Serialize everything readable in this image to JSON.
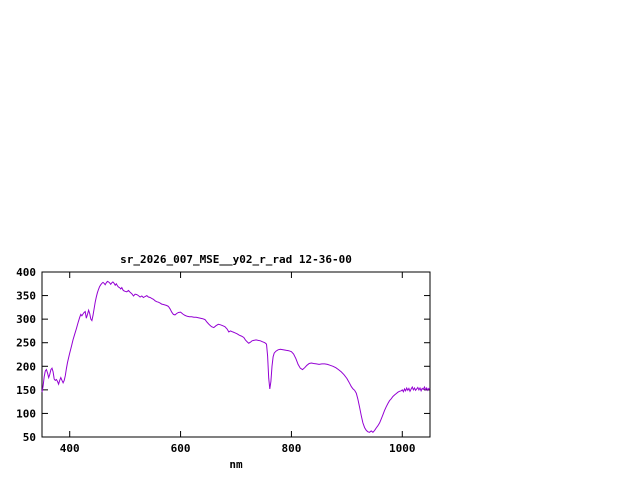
{
  "window": {
    "background": "#ffffff"
  },
  "chart_data": {
    "type": "line",
    "title": "sr_2026_007_MSE__y02_r_rad 12-36-00",
    "xlabel": "nm",
    "ylabel": "",
    "xlim": [
      350,
      1050
    ],
    "ylim": [
      50,
      400
    ],
    "xticks": [
      400,
      600,
      800,
      1000
    ],
    "yticks": [
      50,
      100,
      150,
      200,
      250,
      300,
      350,
      400
    ],
    "grid": false,
    "legend": "none",
    "line_color": "#9400d3",
    "frame_color": "#000000",
    "series": [
      {
        "name": "sr_2026_007_MSE__y02_r_rad",
        "points": [
          [
            350,
            145
          ],
          [
            352,
            158
          ],
          [
            354,
            178
          ],
          [
            356,
            190
          ],
          [
            358,
            193
          ],
          [
            360,
            186
          ],
          [
            362,
            176
          ],
          [
            364,
            183
          ],
          [
            366,
            193
          ],
          [
            368,
            196
          ],
          [
            370,
            188
          ],
          [
            372,
            173
          ],
          [
            374,
            170
          ],
          [
            376,
            172
          ],
          [
            378,
            168
          ],
          [
            380,
            162
          ],
          [
            382,
            170
          ],
          [
            384,
            176
          ],
          [
            386,
            170
          ],
          [
            388,
            165
          ],
          [
            390,
            170
          ],
          [
            392,
            180
          ],
          [
            394,
            195
          ],
          [
            396,
            208
          ],
          [
            398,
            218
          ],
          [
            400,
            228
          ],
          [
            403,
            242
          ],
          [
            406,
            256
          ],
          [
            409,
            268
          ],
          [
            412,
            280
          ],
          [
            415,
            292
          ],
          [
            418,
            304
          ],
          [
            420,
            310
          ],
          [
            422,
            307
          ],
          [
            424,
            311
          ],
          [
            426,
            314
          ],
          [
            428,
            316
          ],
          [
            430,
            302
          ],
          [
            432,
            310
          ],
          [
            434,
            319
          ],
          [
            436,
            312
          ],
          [
            438,
            300
          ],
          [
            440,
            297
          ],
          [
            442,
            308
          ],
          [
            444,
            322
          ],
          [
            446,
            336
          ],
          [
            448,
            347
          ],
          [
            450,
            356
          ],
          [
            452,
            363
          ],
          [
            454,
            369
          ],
          [
            456,
            373
          ],
          [
            458,
            376
          ],
          [
            460,
            378
          ],
          [
            462,
            376
          ],
          [
            464,
            373
          ],
          [
            466,
            377
          ],
          [
            468,
            380
          ],
          [
            470,
            379
          ],
          [
            472,
            377
          ],
          [
            474,
            374
          ],
          [
            476,
            377
          ],
          [
            478,
            379
          ],
          [
            480,
            376
          ],
          [
            482,
            372
          ],
          [
            484,
            375
          ],
          [
            486,
            371
          ],
          [
            488,
            368
          ],
          [
            490,
            367
          ],
          [
            492,
            364
          ],
          [
            494,
            367
          ],
          [
            496,
            362
          ],
          [
            498,
            360
          ],
          [
            500,
            359
          ],
          [
            503,
            358
          ],
          [
            506,
            361
          ],
          [
            509,
            357
          ],
          [
            512,
            354
          ],
          [
            515,
            349
          ],
          [
            518,
            353
          ],
          [
            521,
            352
          ],
          [
            524,
            350
          ],
          [
            527,
            347
          ],
          [
            530,
            349
          ],
          [
            533,
            346
          ],
          [
            536,
            348
          ],
          [
            539,
            350
          ],
          [
            542,
            347
          ],
          [
            545,
            346
          ],
          [
            548,
            344
          ],
          [
            551,
            342
          ],
          [
            554,
            339
          ],
          [
            557,
            337
          ],
          [
            560,
            336
          ],
          [
            563,
            334
          ],
          [
            566,
            332
          ],
          [
            569,
            331
          ],
          [
            572,
            330
          ],
          [
            575,
            329
          ],
          [
            578,
            327
          ],
          [
            581,
            322
          ],
          [
            584,
            315
          ],
          [
            587,
            310
          ],
          [
            590,
            309
          ],
          [
            593,
            312
          ],
          [
            596,
            314
          ],
          [
            600,
            315
          ],
          [
            604,
            311
          ],
          [
            608,
            308
          ],
          [
            612,
            306
          ],
          [
            616,
            305
          ],
          [
            620,
            305
          ],
          [
            624,
            304
          ],
          [
            628,
            304
          ],
          [
            632,
            303
          ],
          [
            636,
            302
          ],
          [
            640,
            301
          ],
          [
            644,
            299
          ],
          [
            648,
            293
          ],
          [
            652,
            288
          ],
          [
            656,
            284
          ],
          [
            660,
            282
          ],
          [
            664,
            286
          ],
          [
            668,
            289
          ],
          [
            672,
            288
          ],
          [
            676,
            286
          ],
          [
            680,
            284
          ],
          [
            684,
            279
          ],
          [
            687,
            273
          ],
          [
            690,
            275
          ],
          [
            694,
            273
          ],
          [
            698,
            271
          ],
          [
            702,
            269
          ],
          [
            706,
            266
          ],
          [
            710,
            264
          ],
          [
            714,
            261
          ],
          [
            717,
            256
          ],
          [
            720,
            252
          ],
          [
            723,
            249
          ],
          [
            726,
            251
          ],
          [
            729,
            254
          ],
          [
            732,
            255
          ],
          [
            736,
            256
          ],
          [
            740,
            255
          ],
          [
            744,
            254
          ],
          [
            748,
            252
          ],
          [
            752,
            250
          ],
          [
            755,
            247
          ],
          [
            757,
            222
          ],
          [
            759,
            175
          ],
          [
            761,
            152
          ],
          [
            763,
            168
          ],
          [
            765,
            200
          ],
          [
            767,
            220
          ],
          [
            769,
            228
          ],
          [
            772,
            232
          ],
          [
            776,
            235
          ],
          [
            780,
            236
          ],
          [
            785,
            235
          ],
          [
            790,
            234
          ],
          [
            795,
            233
          ],
          [
            800,
            231
          ],
          [
            804,
            226
          ],
          [
            808,
            216
          ],
          [
            812,
            204
          ],
          [
            816,
            196
          ],
          [
            820,
            193
          ],
          [
            824,
            197
          ],
          [
            828,
            202
          ],
          [
            832,
            206
          ],
          [
            836,
            207
          ],
          [
            840,
            206
          ],
          [
            845,
            205
          ],
          [
            850,
            204
          ],
          [
            855,
            205
          ],
          [
            860,
            205
          ],
          [
            865,
            204
          ],
          [
            870,
            202
          ],
          [
            875,
            200
          ],
          [
            880,
            197
          ],
          [
            885,
            193
          ],
          [
            890,
            188
          ],
          [
            895,
            182
          ],
          [
            900,
            174
          ],
          [
            905,
            164
          ],
          [
            908,
            157
          ],
          [
            911,
            152
          ],
          [
            914,
            149
          ],
          [
            917,
            143
          ],
          [
            920,
            130
          ],
          [
            923,
            113
          ],
          [
            926,
            95
          ],
          [
            929,
            80
          ],
          [
            932,
            70
          ],
          [
            935,
            64
          ],
          [
            938,
            61
          ],
          [
            941,
            60
          ],
          [
            944,
            63
          ],
          [
            947,
            60
          ],
          [
            950,
            64
          ],
          [
            953,
            69
          ],
          [
            956,
            74
          ],
          [
            959,
            80
          ],
          [
            962,
            88
          ],
          [
            965,
            97
          ],
          [
            968,
            106
          ],
          [
            971,
            114
          ],
          [
            974,
            121
          ],
          [
            977,
            127
          ],
          [
            980,
            131
          ],
          [
            983,
            136
          ],
          [
            986,
            139
          ],
          [
            989,
            142
          ],
          [
            992,
            145
          ],
          [
            995,
            147
          ],
          [
            998,
            148
          ],
          [
            1000,
            150
          ],
          [
            1002,
            146
          ],
          [
            1004,
            152
          ],
          [
            1006,
            148
          ],
          [
            1008,
            154
          ],
          [
            1010,
            149
          ],
          [
            1012,
            153
          ],
          [
            1014,
            147
          ],
          [
            1016,
            152
          ],
          [
            1018,
            156
          ],
          [
            1020,
            150
          ],
          [
            1022,
            154
          ],
          [
            1024,
            149
          ],
          [
            1026,
            152
          ],
          [
            1028,
            155
          ],
          [
            1030,
            150
          ],
          [
            1032,
            154
          ],
          [
            1034,
            148
          ],
          [
            1036,
            153
          ],
          [
            1038,
            151
          ],
          [
            1040,
            156
          ],
          [
            1042,
            150
          ],
          [
            1044,
            154
          ],
          [
            1046,
            149
          ],
          [
            1048,
            153
          ],
          [
            1050,
            152
          ]
        ]
      }
    ]
  }
}
